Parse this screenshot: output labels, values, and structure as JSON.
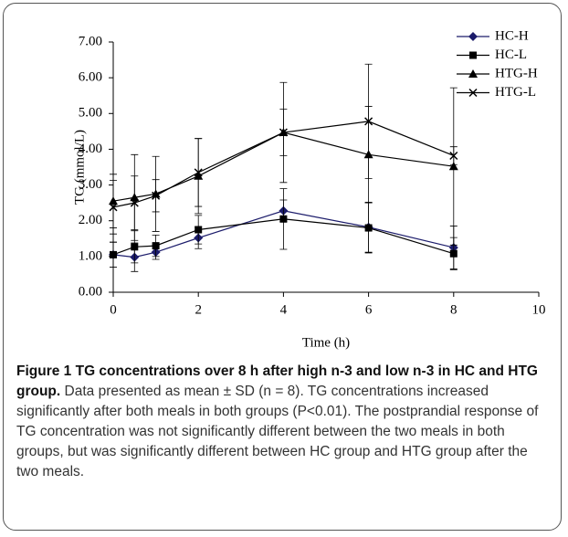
{
  "chart_data": {
    "type": "line",
    "x_label": "Time (h)",
    "y_label": "TG (mmol/L)",
    "xlim": [
      0,
      10
    ],
    "xticks": [
      0,
      2,
      4,
      6,
      8,
      10
    ],
    "ylim": [
      0,
      7
    ],
    "yticks": [
      {
        "value": 0,
        "label": "0.00"
      },
      {
        "value": 1,
        "label": "1.00"
      },
      {
        "value": 2,
        "label": "2.00"
      },
      {
        "value": 3,
        "label": "3.00"
      },
      {
        "value": 4,
        "label": "4.00"
      },
      {
        "value": 5,
        "label": "5.00"
      },
      {
        "value": 6,
        "label": "6.00"
      },
      {
        "value": 7,
        "label": "7.00"
      }
    ],
    "legend": "top-right",
    "x": [
      0,
      0.5,
      1,
      2,
      4,
      6,
      8
    ],
    "series": [
      {
        "name": "HC-H",
        "color": "#1c1c6b",
        "marker": "diamond",
        "values": [
          1.05,
          0.98,
          1.12,
          1.52,
          2.28,
          1.82,
          1.25
        ],
        "errors": [
          0.35,
          0.4,
          0.2,
          0.3,
          0.3,
          0.7,
          0.6
        ]
      },
      {
        "name": "HC-L",
        "color": "#000000",
        "marker": "square",
        "values": [
          1.05,
          1.27,
          1.3,
          1.75,
          2.05,
          1.8,
          1.08
        ],
        "errors": [
          0.35,
          0.45,
          0.3,
          0.4,
          0.85,
          0.7,
          0.45
        ]
      },
      {
        "name": "HTG-H",
        "color": "#000000",
        "marker": "triangle",
        "values": [
          2.55,
          2.65,
          2.75,
          3.25,
          4.47,
          3.85,
          3.52
        ],
        "errors": [
          0.75,
          1.2,
          1.05,
          1.05,
          1.4,
          1.35,
          2.2
        ]
      },
      {
        "name": "HTG-L",
        "color": "#000000",
        "marker": "cross",
        "values": [
          2.38,
          2.5,
          2.7,
          3.35,
          4.47,
          4.78,
          3.82
        ],
        "errors": [
          0.75,
          0.75,
          0.45,
          0.95,
          0.65,
          1.6,
          0.25
        ]
      }
    ]
  },
  "caption": {
    "title": "Figure 1 TG concentrations over 8 h after high n-3 and low n-3 in HC and HTG group.",
    "body": "Data presented as mean ± SD (n = 8). TG concentrations increased significantly after both meals in both groups (P<0.01). The postprandial response of TG concentration was not significantly different between the two meals in both groups, but was significantly different between HC group and HTG group after the two meals."
  }
}
